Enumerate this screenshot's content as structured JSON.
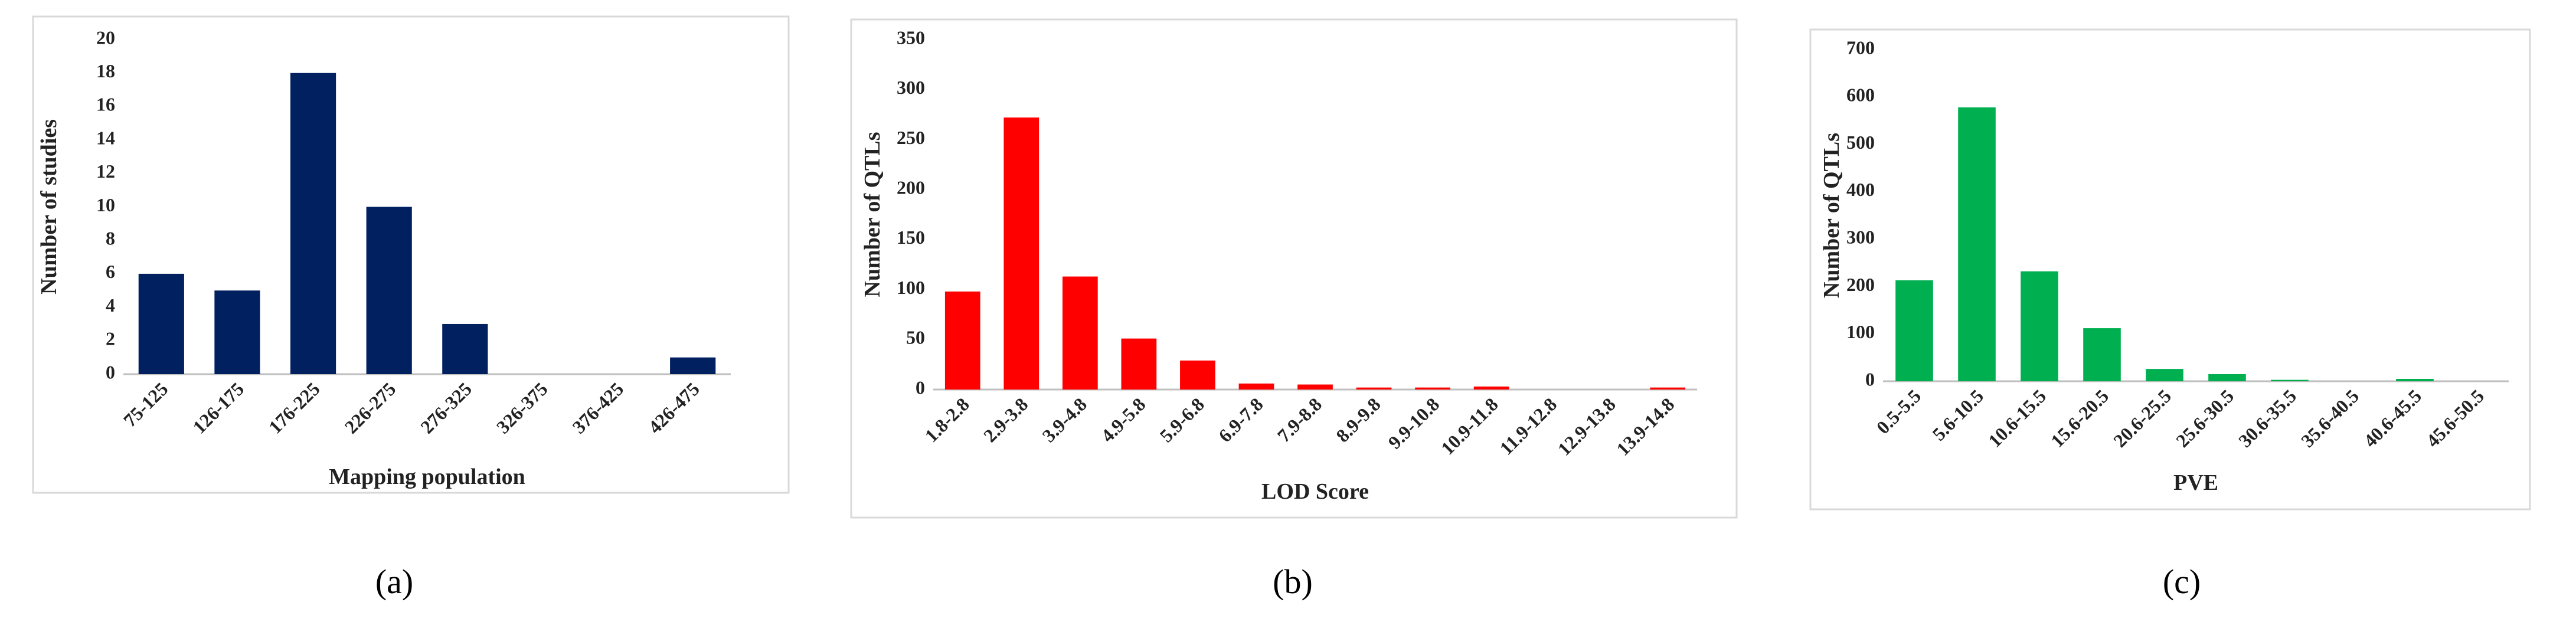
{
  "chart_data": [
    {
      "type": "bar",
      "panel_label": "(a)",
      "x_label": "Mapping population",
      "y_label": "Number of studies",
      "categories": [
        "75-125",
        "126-175",
        "176-225",
        "226-275",
        "276-325",
        "326-375",
        "376-425",
        "426-475"
      ],
      "values": [
        6,
        5,
        18,
        10,
        3,
        0,
        0,
        1
      ],
      "color": "#002060",
      "ylim": [
        0,
        20
      ],
      "yticks": [
        0,
        2,
        4,
        6,
        8,
        10,
        12,
        14,
        16,
        18,
        20
      ],
      "grid": false
    },
    {
      "type": "bar",
      "panel_label": "(b)",
      "x_label": "LOD Score",
      "y_label": "Number of QTLs",
      "categories": [
        "1.8-2.8",
        "2.9-3.8",
        "3.9-4.8",
        "4.9-5.8",
        "5.9-6.8",
        "6.9-7.8",
        "7.9-8.8",
        "8.9-9.8",
        "9.9-10.8",
        "10.9-11.8",
        "11.9-12.8",
        "12.9-13.8",
        "13.9-14.8"
      ],
      "values": [
        98,
        272,
        113,
        51,
        29,
        6,
        5,
        2,
        2,
        3,
        0,
        0,
        2
      ],
      "color": "#ff0000",
      "ylim": [
        0,
        350
      ],
      "yticks": [
        0,
        50,
        100,
        150,
        200,
        250,
        300,
        350
      ],
      "grid": false
    },
    {
      "type": "bar",
      "panel_label": "(c)",
      "x_label": "PVE",
      "y_label": "Number of QTLs",
      "categories": [
        "0.5-5.5",
        "5.6-10.5",
        "10.6-15.5",
        "15.6-20.5",
        "20.6-25.5",
        "25.6-30.5",
        "30.6-35.5",
        "35.6-40.5",
        "40.6-45.5",
        "45.6-50.5"
      ],
      "values": [
        213,
        578,
        232,
        112,
        26,
        15,
        3,
        0,
        5,
        0
      ],
      "color": "#00b050",
      "ylim": [
        0,
        700
      ],
      "yticks": [
        0,
        100,
        200,
        300,
        400,
        500,
        600,
        700
      ],
      "grid": false
    }
  ]
}
